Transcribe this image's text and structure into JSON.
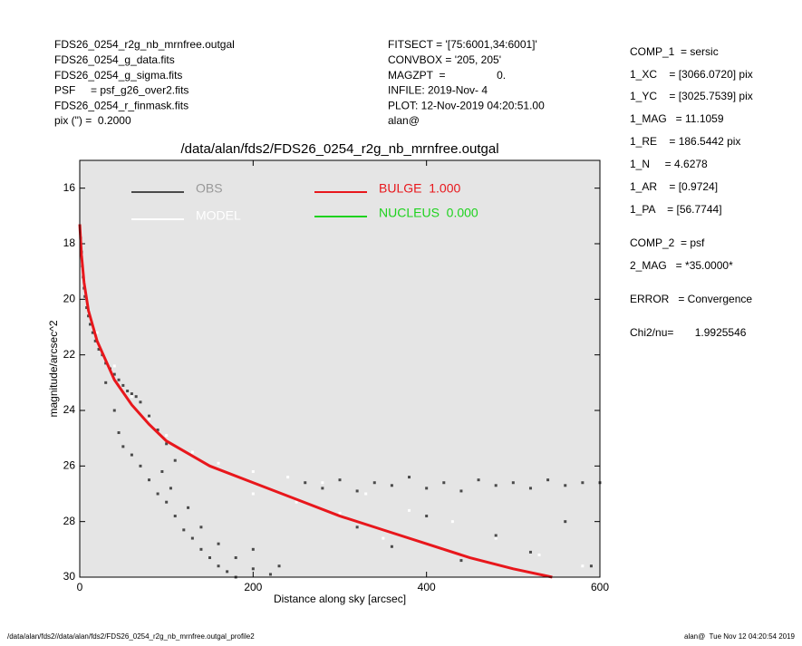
{
  "header": {
    "left": [
      "FDS26_0254_r2g_nb_mrnfree.outgal",
      "FDS26_0254_g_data.fits",
      "FDS26_0254_g_sigma.fits",
      "PSF     = psf_g26_over2.fits",
      "FDS26_0254_r_finmask.fits",
      "pix (\") =  0.2000"
    ],
    "middle": [
      "FITSECT = '[75:6001,34:6001]'",
      "CONVBOX = '205, 205'",
      "MAGZPT  =                 0.",
      "INFILE: 2019-Nov- 4",
      "PLOT: 12-Nov-2019 04:20:51.00",
      "alan@"
    ],
    "right": [
      "COMP_1  = sersic",
      "1_XC    = [3066.0720] pix",
      "1_YC    = [3025.7539] pix",
      "1_MAG   = 11.1059",
      "1_RE    = 186.5442 pix",
      "1_N     = 4.6278",
      "1_AR    = [0.9724]",
      "1_PA    = [56.7744]",
      "COMP_2  = psf",
      "2_MAG   = *35.0000*",
      "ERROR   = Convergence",
      "Chi2/nu=       1.9925546"
    ]
  },
  "footer": {
    "left": "/data/alan/fds2//data/alan/fds2/FDS26_0254_r2g_nb_mrnfree.outgal_profile2",
    "right": "alan@  Tue Nov 12 04:20:54 2019"
  },
  "chart_data": {
    "type": "scatter",
    "title": "/data/alan/fds2/FDS26_0254_r2g_nb_mrnfree.outgal",
    "x_label": "Distance along sky [arcsec]",
    "y_label": "magnitude/arcsec^2",
    "xlim": [
      0,
      600
    ],
    "ylim": [
      30,
      15
    ],
    "xticks": [
      0,
      200,
      400,
      600
    ],
    "yticks": [
      16,
      18,
      20,
      22,
      24,
      26,
      28,
      30
    ],
    "series": [
      {
        "name": "OBS",
        "color": "#4a4a4a",
        "mode": "points",
        "x": [
          1,
          2,
          3,
          4,
          5,
          6,
          8,
          10,
          12,
          15,
          18,
          22,
          26,
          30,
          35,
          40,
          45,
          50,
          55,
          60,
          65,
          70,
          80,
          90,
          100,
          110,
          30,
          40,
          45,
          50,
          60,
          70,
          80,
          90,
          100,
          110,
          120,
          130,
          140,
          150,
          160,
          170,
          180,
          200,
          220,
          95,
          105,
          125,
          140,
          160,
          180,
          200,
          230,
          260,
          280,
          300,
          320,
          340,
          360,
          380,
          400,
          420,
          440,
          460,
          480,
          500,
          520,
          540,
          560,
          580,
          600,
          320,
          360,
          400,
          440,
          480,
          520,
          560,
          590
        ],
        "values": [
          17.8,
          18.3,
          18.8,
          19.2,
          19.6,
          19.9,
          20.3,
          20.6,
          20.9,
          21.2,
          21.5,
          21.8,
          22.0,
          22.3,
          22.5,
          22.7,
          22.9,
          23.1,
          23.3,
          23.4,
          23.5,
          23.7,
          24.2,
          24.7,
          25.2,
          25.8,
          23.0,
          24.0,
          24.8,
          25.3,
          25.6,
          26.0,
          26.5,
          27.0,
          27.3,
          27.8,
          28.3,
          28.6,
          29.0,
          29.3,
          29.6,
          29.8,
          30.0,
          29.7,
          29.9,
          26.2,
          26.8,
          27.5,
          28.2,
          28.8,
          29.3,
          29.0,
          29.6,
          26.6,
          26.8,
          26.5,
          26.9,
          26.6,
          26.7,
          26.4,
          26.8,
          26.6,
          26.9,
          26.5,
          26.7,
          26.6,
          26.8,
          26.5,
          26.7,
          26.6,
          26.6,
          28.2,
          28.9,
          27.8,
          29.4,
          28.5,
          29.1,
          28.0,
          29.6
        ]
      },
      {
        "name": "MODEL",
        "color": "#ffffff",
        "mode": "points",
        "x": [
          5,
          20,
          40,
          60,
          80,
          100,
          130,
          160,
          200,
          240,
          280,
          330,
          380,
          430,
          480,
          530,
          580,
          300,
          350,
          250,
          420,
          200
        ],
        "values": [
          19.3,
          21.2,
          22.4,
          23.5,
          24.3,
          24.9,
          25.5,
          25.9,
          26.2,
          26.4,
          26.6,
          27.0,
          27.6,
          28.0,
          28.6,
          29.2,
          29.6,
          27.7,
          28.6,
          27.3,
          29.0,
          27.0
        ]
      },
      {
        "name": "BULGE  1.000",
        "color": "#e8171c",
        "mode": "line",
        "x": [
          0,
          2,
          5,
          10,
          20,
          40,
          60,
          80,
          100,
          150,
          200,
          250,
          300,
          350,
          400,
          450,
          500,
          545
        ],
        "values": [
          17.3,
          18.4,
          19.4,
          20.4,
          21.5,
          22.9,
          23.8,
          24.5,
          25.1,
          26.0,
          26.6,
          27.2,
          27.8,
          28.3,
          28.8,
          29.3,
          29.7,
          30.0
        ]
      },
      {
        "name": "NUCLEUS  0.000",
        "color": "#1ed21e",
        "mode": "line",
        "x": [],
        "values": []
      }
    ]
  }
}
